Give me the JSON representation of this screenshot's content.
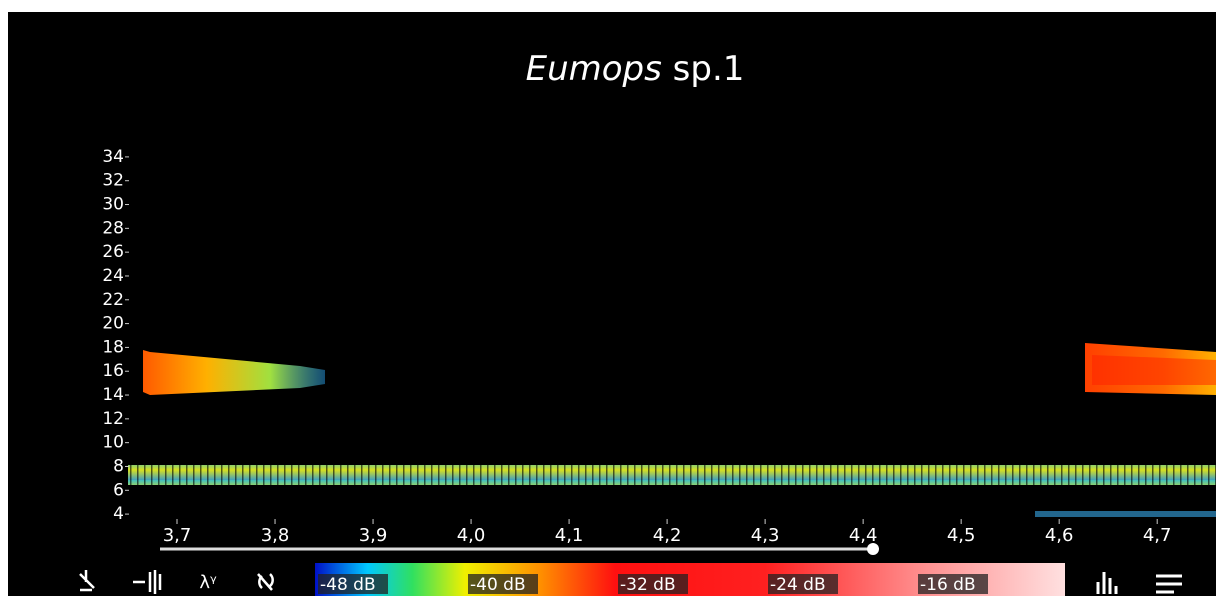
{
  "chart_data": {
    "type": "spectrogram",
    "title": [
      "Eumops",
      "sp.1"
    ],
    "ylim": [
      3,
      35
    ],
    "yticks": [
      4,
      6,
      8,
      10,
      12,
      14,
      16,
      18,
      20,
      22,
      24,
      26,
      28,
      30,
      32,
      34
    ],
    "xlim": [
      3.65,
      4.76
    ],
    "xticks": [
      {
        "value": 3.7,
        "label": "3,7"
      },
      {
        "value": 3.8,
        "label": "3,8"
      },
      {
        "value": 3.9,
        "label": "3,9"
      },
      {
        "value": 4.0,
        "label": "4,0"
      },
      {
        "value": 4.1,
        "label": "4,1"
      },
      {
        "value": 4.2,
        "label": "4,2"
      },
      {
        "value": 4.3,
        "label": "4,3"
      },
      {
        "value": 4.4,
        "label": "4,4"
      },
      {
        "value": 4.5,
        "label": "4,5"
      },
      {
        "value": 4.6,
        "label": "4,6"
      },
      {
        "value": 4.7,
        "label": "4,7"
      }
    ],
    "colorbar_labels": [
      "-48 dB",
      "-40 dB",
      "-32 dB",
      "-24 dB",
      "-16 dB"
    ]
  }
}
